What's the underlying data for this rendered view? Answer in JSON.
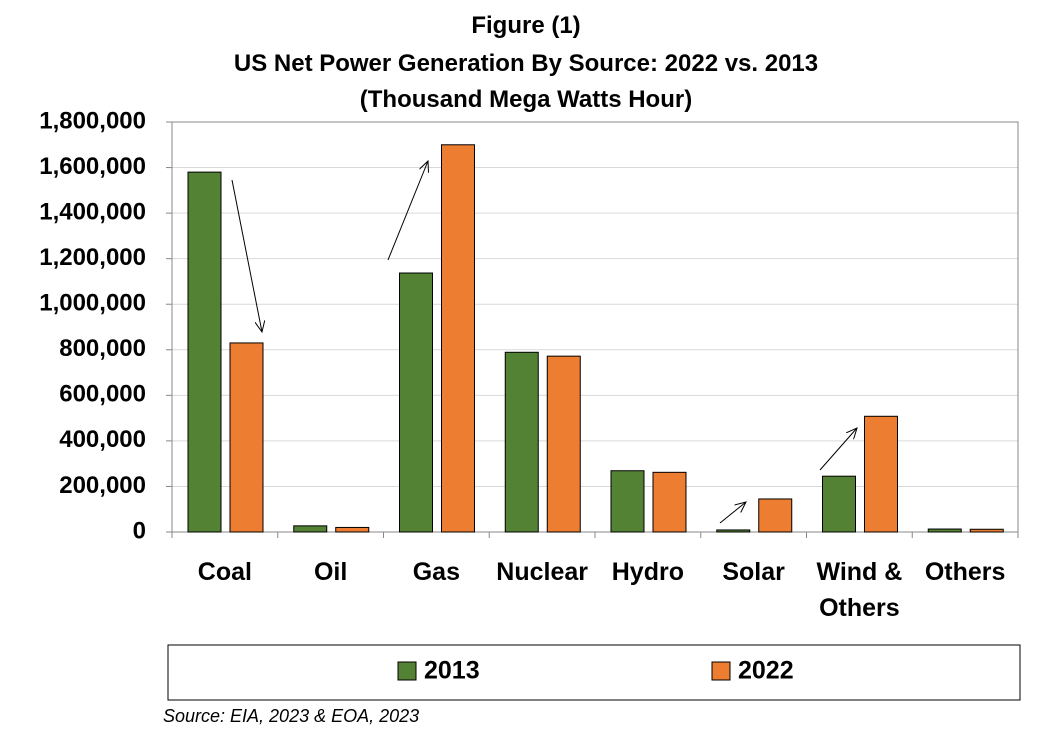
{
  "chart_data": {
    "type": "bar",
    "title": "Figure (1)",
    "subtitle": "US Net Power Generation By Source: 2022 vs. 2013",
    "unit_label": "(Thousand Mega Watts Hour)",
    "source": "Source: EIA, 2023 & EOA, 2023",
    "categories": [
      "Coal",
      "Oil",
      "Gas",
      "Nuclear",
      "Hydro",
      "Solar",
      "Wind & Others",
      "Others"
    ],
    "series": [
      {
        "name": "2013",
        "color": "#548235",
        "values": [
          1580000,
          27000,
          1137000,
          789000,
          269000,
          9000,
          245000,
          13000
        ]
      },
      {
        "name": "2022",
        "color": "#ed7d31",
        "values": [
          830000,
          20000,
          1700000,
          772000,
          262000,
          145000,
          508000,
          12000
        ]
      }
    ],
    "ylim": [
      0,
      1800000
    ],
    "yticks": [
      0,
      {
        "value": 200000,
        "label": "200,000"
      },
      {
        "value": 400000,
        "label": "400,000"
      },
      {
        "value": 600000,
        "label": "600,000"
      },
      {
        "value": 800000,
        "label": "800,000"
      },
      {
        "value": 1000000,
        "label": "1,000,000"
      },
      {
        "value": 1200000,
        "label": "1,200,000"
      },
      {
        "value": 1400000,
        "label": "1,400,000"
      },
      {
        "value": 1600000,
        "label": "1,600,000"
      },
      {
        "value": 1800000,
        "label": "1,800,000"
      }
    ],
    "grid": true,
    "legend": "bottom"
  }
}
